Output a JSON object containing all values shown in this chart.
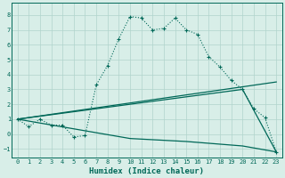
{
  "title": "",
  "xlabel": "Humidex (Indice chaleur)",
  "xlim": [
    -0.5,
    23.5
  ],
  "ylim": [
    -1.6,
    8.8
  ],
  "xticks": [
    0,
    1,
    2,
    3,
    4,
    5,
    6,
    7,
    8,
    9,
    10,
    11,
    12,
    13,
    14,
    15,
    16,
    17,
    18,
    19,
    20,
    21,
    22,
    23
  ],
  "yticks": [
    -1,
    0,
    1,
    2,
    3,
    4,
    5,
    6,
    7,
    8
  ],
  "bg_color": "#d8eee8",
  "grid_color": "#b0d4cc",
  "line_color": "#006858",
  "line1_x": [
    0,
    1,
    2,
    3,
    4,
    5,
    6,
    7,
    8,
    9,
    10,
    11,
    12,
    13,
    14,
    15,
    16,
    17,
    18,
    19,
    20,
    21,
    22,
    23
  ],
  "line1_y": [
    1.0,
    0.5,
    1.0,
    0.6,
    0.6,
    -0.2,
    -0.1,
    3.3,
    4.6,
    6.4,
    7.9,
    7.8,
    7.0,
    7.1,
    7.8,
    7.0,
    6.7,
    5.2,
    4.5,
    3.6,
    3.0,
    1.7,
    1.1,
    -1.2
  ],
  "line2_x": [
    0,
    23
  ],
  "line2_y": [
    1.0,
    3.5
  ],
  "line3_x": [
    0,
    20,
    23
  ],
  "line3_y": [
    1.0,
    3.0,
    -1.2
  ],
  "line4_x": [
    0,
    10,
    15,
    20,
    23
  ],
  "line4_y": [
    1.0,
    -0.3,
    -0.5,
    -0.8,
    -1.2
  ]
}
